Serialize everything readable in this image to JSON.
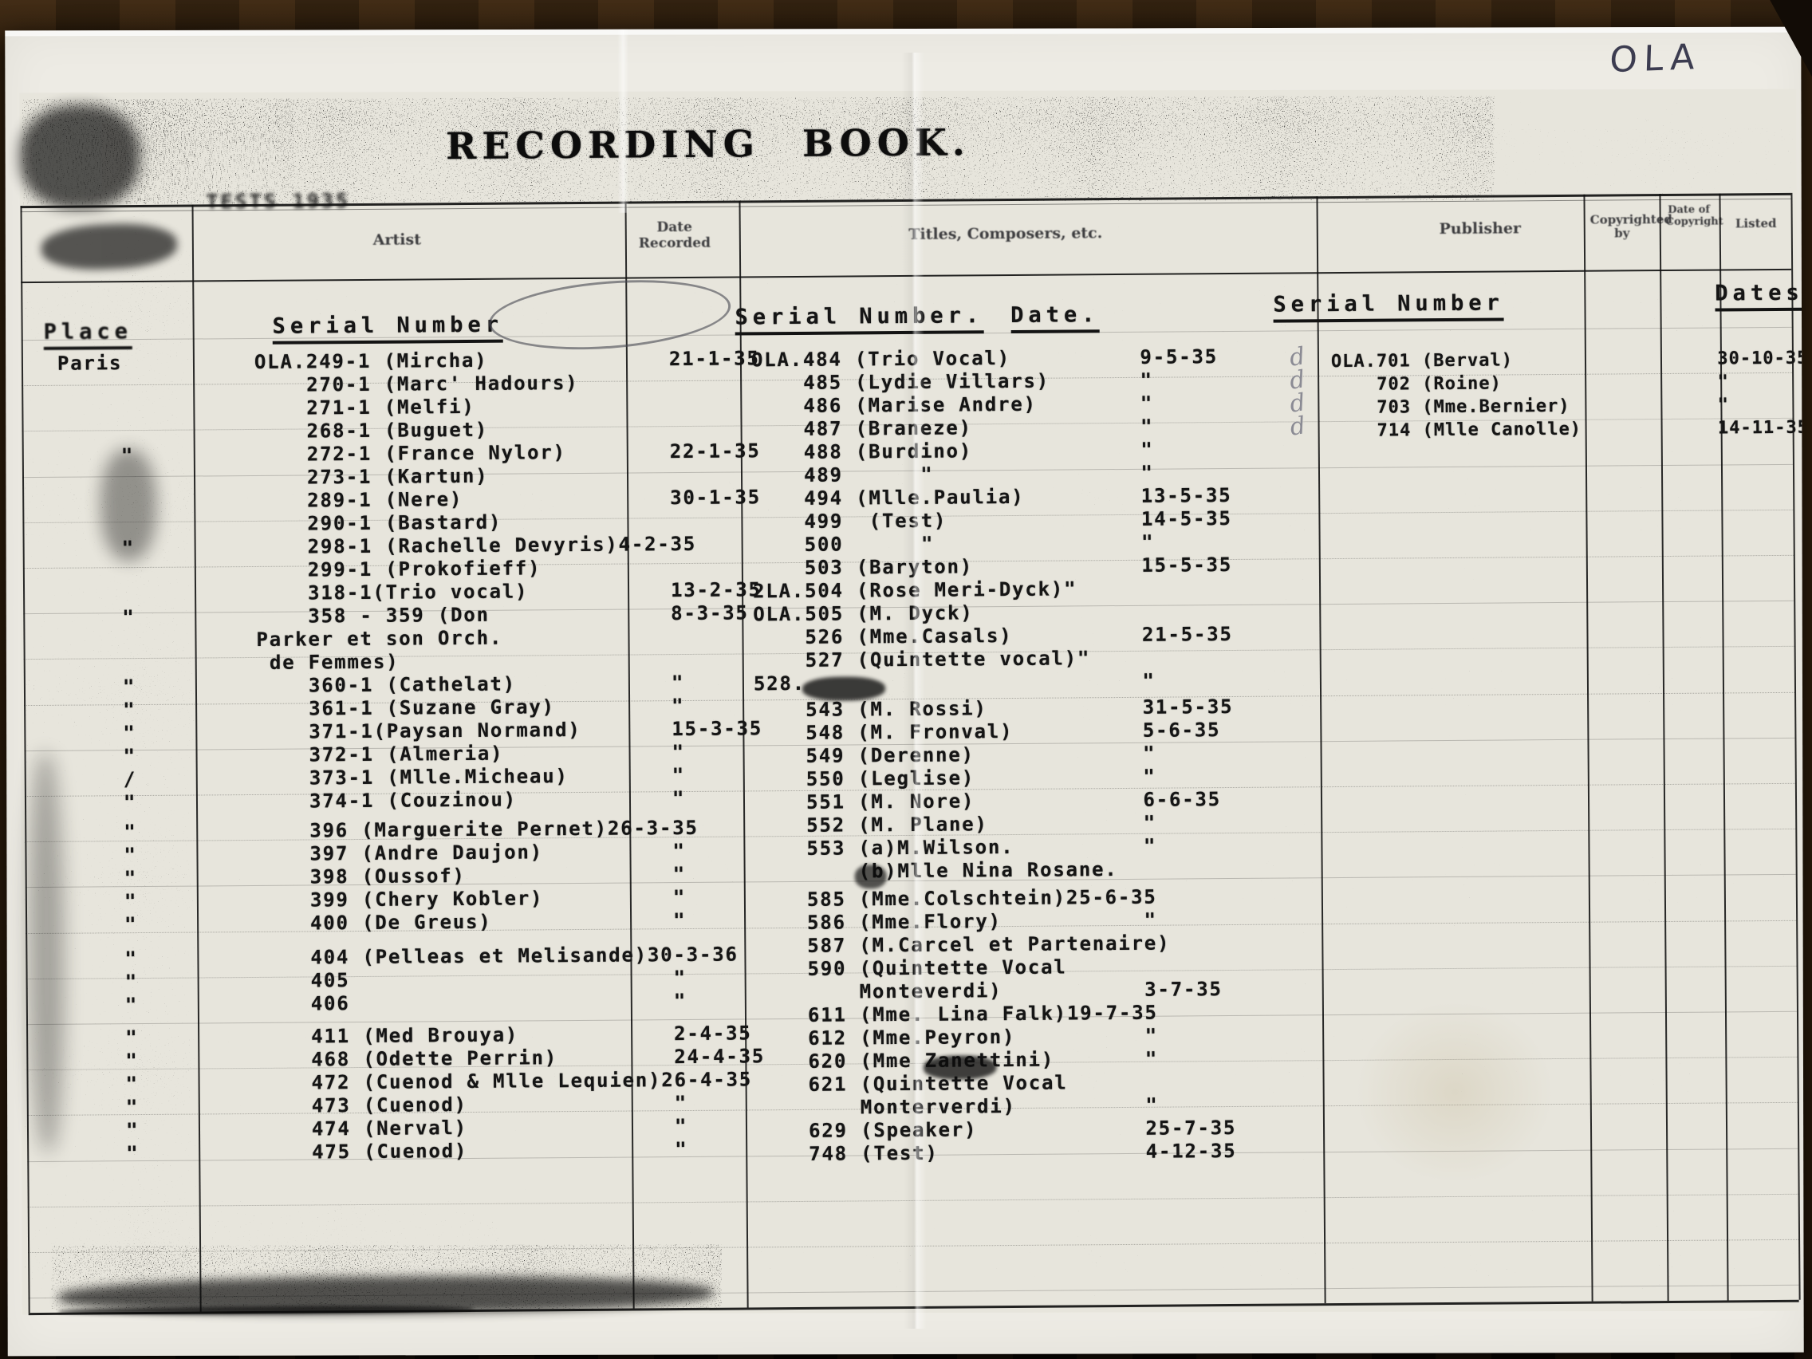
{
  "page": {
    "title": "RECORDING BOOK.",
    "corner_label": "OLA",
    "stamp": "TESTS 1935"
  },
  "headers": {
    "artist": "Artist",
    "date_recorded": "Date Recorded",
    "titles": "Titles, Composers, etc.",
    "publisher": "Publisher",
    "copyrighted_by": "Copyrighted by",
    "date_of_copyright": "Date of Copyright",
    "listed": "Listed"
  },
  "subheaders": {
    "place": "Place",
    "left_serial": "Serial Number",
    "mid_serial": "Serial Number.",
    "mid_date": "Date.",
    "right_serial": "Serial Number",
    "right_dates": "Dates"
  },
  "ledger": {
    "left": {
      "rows": [
        {
          "place": "Paris",
          "serial": "OLA.249-1",
          "name": "(Mircha)",
          "date": "21-1-35"
        },
        {
          "serial": "270-1",
          "name": "(Marc' Hadours)"
        },
        {
          "serial": "271-1",
          "name": "(Melfi)"
        },
        {
          "serial": "268-1",
          "name": "(Buguet)"
        },
        {
          "place": "\"",
          "serial": "272-1",
          "name": "(France Nylor)",
          "date": "22-1-35"
        },
        {
          "serial": "273-1",
          "name": "(Kartun)"
        },
        {
          "serial": "289-1",
          "name": "(Nere)",
          "date": "30-1-35"
        },
        {
          "serial": "290-1",
          "name": "(Bastard)"
        },
        {
          "place": "\"",
          "serial": "298-1",
          "name": "(Rachelle Devyris)",
          "date": "4-2-35"
        },
        {
          "serial": "299-1",
          "name": "(Prokofieff)"
        },
        {
          "serial": "318-1",
          "name": "(Trio vocal)",
          "tight": true,
          "date": "13-2-35"
        },
        {
          "place": "\"",
          "serial": "358 - 359",
          "name": "(Don",
          "date": "8-3-35"
        },
        {
          "indent": 0,
          "name": "Parker et son Orch."
        },
        {
          "indent": 1,
          "name": "de Femmes)"
        },
        {
          "place": "\"",
          "serial": "360-1",
          "name": "(Cathelat)",
          "date": "\""
        },
        {
          "place": "\"",
          "serial": "361-1",
          "name": "(Suzane Gray)",
          "date": "\""
        },
        {
          "place": "\"",
          "serial": "371-1",
          "name": "(Paysan Normand)",
          "tight": true,
          "date": "15-3-35"
        },
        {
          "place": "\"",
          "serial": "372-1",
          "name": "(Almeria)",
          "date": "\""
        },
        {
          "place": "/",
          "serial": "373-1",
          "name": "(Mlle.Micheau)",
          "date": "\""
        },
        {
          "place": "\"",
          "serial": "374-1",
          "name": "(Couzinou)",
          "date": "\""
        },
        {
          "place": "\"",
          "serial": "396",
          "name": "(Marguerite Pernet)",
          "date": "26-3-35",
          "gap": 8
        },
        {
          "place": "\"",
          "serial": "397",
          "name": "(Andre Daujon)",
          "date": "\""
        },
        {
          "place": "\"",
          "serial": "398",
          "name": "(Oussof)",
          "date": "\""
        },
        {
          "place": "\"",
          "serial": "399",
          "name": "(Chery Kobler)",
          "date": "\""
        },
        {
          "place": "\"",
          "serial": "400",
          "name": "(De Greus)",
          "date": "\""
        },
        {
          "place": "\"",
          "serial": "404",
          "name": "(Pelleas et Melisande)",
          "date": "30-3-36",
          "gap": 14
        },
        {
          "place": "\"",
          "serial": "405",
          "date": "\""
        },
        {
          "place": "\"",
          "serial": "406",
          "date": "\""
        },
        {
          "place": "\"",
          "serial": "411",
          "name": "(Med Brouya)",
          "date": "2-4-35",
          "gap": 12
        },
        {
          "place": "\"",
          "serial": "468",
          "name": "(Odette Perrin)",
          "date": "24-4-35"
        },
        {
          "place": "\"",
          "serial": "472",
          "name": "(Cuenod & Mlle Lequien)",
          "date": "26-4-35"
        },
        {
          "place": "\"",
          "serial": "473",
          "name": "(Cuenod)",
          "date": "\""
        },
        {
          "place": "\"",
          "serial": "474",
          "name": "(Nerval)",
          "date": "\""
        },
        {
          "place": "\"",
          "serial": "475",
          "name": "(Cuenod)",
          "date": "\""
        }
      ]
    },
    "middle": {
      "rows": [
        {
          "serial": "OLA.484",
          "name": "(Trio Vocal)",
          "date": "9-5-35"
        },
        {
          "serial": "485",
          "name": "(Lydie Villars)",
          "date": "\""
        },
        {
          "serial": "486",
          "name": "(Marise Andre)",
          "date": "\""
        },
        {
          "serial": "487",
          "name": "(Braneze)",
          "date": "\""
        },
        {
          "serial": "488",
          "name": "(Burdino)",
          "date": "\""
        },
        {
          "serial": "489",
          "name": "     \"",
          "date": "\""
        },
        {
          "serial": "494",
          "name": "(Mlle.Paulia)",
          "date": "13-5-35"
        },
        {
          "serial": "499",
          "name": " (Test)",
          "date": "14-5-35"
        },
        {
          "serial": "500",
          "name": "     \"",
          "date": "\""
        },
        {
          "serial": "503",
          "name": "(Baryton)",
          "date": "15-5-35"
        },
        {
          "serial": "2LA.504",
          "name": "(Rose Meri-Dyck)",
          "date": "\""
        },
        {
          "serial": "OLA.505",
          "name": "(M. Dyck)"
        },
        {
          "serial": "526",
          "name": "(Mme.Casals)",
          "date": "21-5-35"
        },
        {
          "serial": "527",
          "name": "(Quintette vocal)\""
        },
        {
          "serial": "528.",
          "date": "\""
        },
        {
          "serial": "543",
          "name": "(M. Rossi)",
          "date": "31-5-35",
          "gap": 4
        },
        {
          "serial": "548",
          "name": "(M. Fronval)",
          "date": "5-6-35"
        },
        {
          "serial": "549",
          "name": "(Derenne)",
          "date": "\""
        },
        {
          "serial": "550",
          "name": "(Leglise)",
          "date": "\""
        },
        {
          "serial": "551",
          "name": "(M. Nore)",
          "date": "6-6-35"
        },
        {
          "serial": "552",
          "name": "(M. Plane)",
          "date": "\""
        },
        {
          "serial": "553",
          "name": "(a)M.Wilson.",
          "date": "\""
        },
        {
          "indent": 8,
          "name": "(b)Mlle Nina Rosane."
        },
        {
          "serial": "585",
          "name": "(Mme.Colschtein)",
          "date": "25-6-35",
          "gap": 6
        },
        {
          "serial": "586",
          "name": "(Mme.Flory)",
          "date": "\""
        },
        {
          "serial": "587",
          "name": "(M.Carcel et Partenaire)"
        },
        {
          "serial": "590",
          "name": "(Quintette Vocal"
        },
        {
          "indent": 8,
          "name": "Monteverdi)",
          "date": "3-7-35"
        },
        {
          "serial": "611",
          "name": "(Mme. Lina Falk)",
          "date": "19-7-35"
        },
        {
          "serial": "612",
          "name": "(Mme.Peyron)",
          "date": "\""
        },
        {
          "serial": "620",
          "name": "(Mme Zanettini)",
          "date": "\""
        },
        {
          "serial": "621",
          "name": "(Quintette Vocal"
        },
        {
          "indent": 8,
          "name": "Monterverdi)",
          "date": "\""
        },
        {
          "serial": "629",
          "name": "(Speaker)",
          "date": "25-7-35"
        },
        {
          "serial": "748",
          "name": "(Test)",
          "date": "4-12-35"
        }
      ]
    },
    "right": {
      "rows": [
        {
          "serial": "OLA.701",
          "name": "(Berval)",
          "date": "30-10-35",
          "check": "d"
        },
        {
          "serial": "702",
          "name": "(Roine)",
          "date": "\"",
          "check": "d"
        },
        {
          "serial": "703",
          "name": "(Mme.Bernier)",
          "date": "\"",
          "check": "d"
        },
        {
          "serial": "714",
          "name": "(Mlle Canolle)",
          "date": "14-11-35",
          "check": "d"
        }
      ]
    }
  }
}
